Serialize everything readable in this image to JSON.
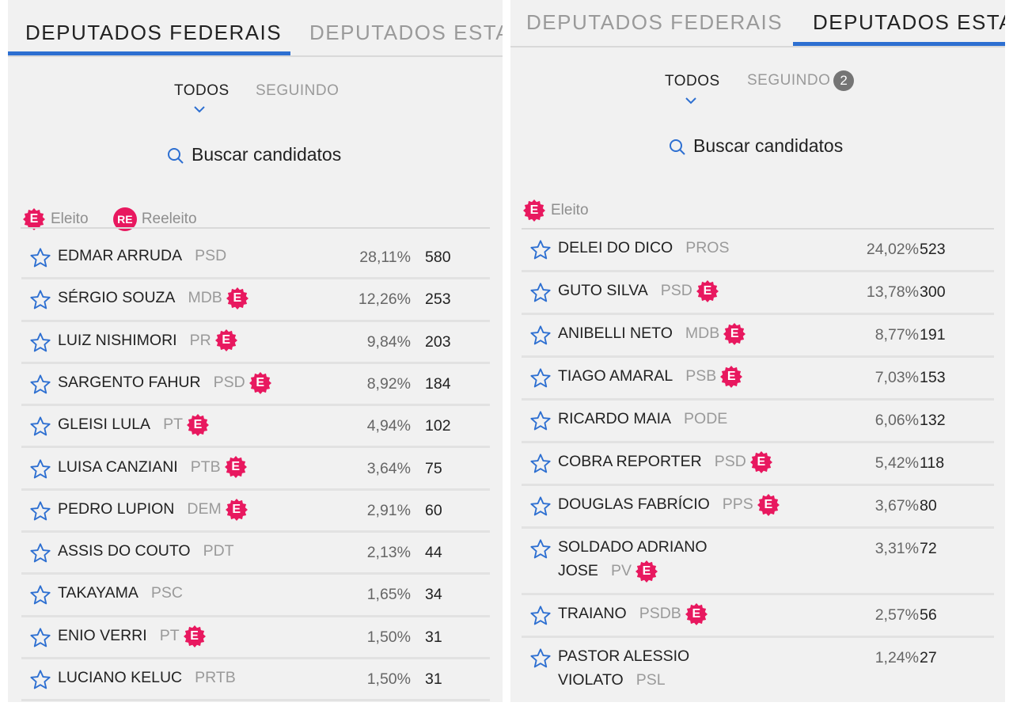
{
  "colors": {
    "accent": "#2d6fd1",
    "elected_badge": "#e8185f",
    "count_badge": "#757575"
  },
  "left": {
    "tabs": [
      "DEPUTADOS FEDERAIS",
      "DEPUTADOS ESTA"
    ],
    "active_tab": 0,
    "filters": {
      "all": "TODOS",
      "following": "SEGUINDO"
    },
    "search_label": "Buscar candidatos",
    "legend": [
      {
        "badge": "E",
        "label": "Eleito"
      },
      {
        "badge": "RE",
        "label": "Reeleito"
      }
    ],
    "rows": [
      {
        "name": "EDMAR ARRUDA",
        "party": "PSD",
        "elected": false,
        "pct": "28,11%",
        "votes": "580"
      },
      {
        "name": "SÉRGIO SOUZA",
        "party": "MDB",
        "elected": true,
        "pct": "12,26%",
        "votes": "253"
      },
      {
        "name": "LUIZ NISHIMORI",
        "party": "PR",
        "elected": true,
        "pct": "9,84%",
        "votes": "203"
      },
      {
        "name": "SARGENTO FAHUR",
        "party": "PSD",
        "elected": true,
        "pct": "8,92%",
        "votes": "184"
      },
      {
        "name": "GLEISI LULA",
        "party": "PT",
        "elected": true,
        "pct": "4,94%",
        "votes": "102"
      },
      {
        "name": "LUISA CANZIANI",
        "party": "PTB",
        "elected": true,
        "pct": "3,64%",
        "votes": "75"
      },
      {
        "name": "PEDRO LUPION",
        "party": "DEM",
        "elected": true,
        "pct": "2,91%",
        "votes": "60"
      },
      {
        "name": "ASSIS DO COUTO",
        "party": "PDT",
        "elected": false,
        "pct": "2,13%",
        "votes": "44"
      },
      {
        "name": "TAKAYAMA",
        "party": "PSC",
        "elected": false,
        "pct": "1,65%",
        "votes": "34"
      },
      {
        "name": "ENIO VERRI",
        "party": "PT",
        "elected": true,
        "pct": "1,50%",
        "votes": "31"
      },
      {
        "name": "LUCIANO KELUC",
        "party": "PRTB",
        "elected": false,
        "pct": "1,50%",
        "votes": "31"
      }
    ]
  },
  "right": {
    "tabs": [
      "DEPUTADOS FEDERAIS",
      "DEPUTADOS ESTA"
    ],
    "active_tab": 1,
    "filters": {
      "all": "TODOS",
      "following": "SEGUINDO",
      "following_count": "2"
    },
    "search_label": "Buscar candidatos",
    "legend": [
      {
        "badge": "E",
        "label": "Eleito"
      }
    ],
    "rows": [
      {
        "name_lines": [
          "DELEI DO DICO"
        ],
        "party": "PROS",
        "elected": false,
        "pct": "24,02%",
        "votes": "523"
      },
      {
        "name_lines": [
          "GUTO SILVA"
        ],
        "party": "PSD",
        "elected": true,
        "pct": "13,78%",
        "votes": "300"
      },
      {
        "name_lines": [
          "ANIBELLI NETO"
        ],
        "party": "MDB",
        "elected": true,
        "pct": "8,77%",
        "votes": "191"
      },
      {
        "name_lines": [
          "TIAGO AMARAL"
        ],
        "party": "PSB",
        "elected": true,
        "pct": "7,03%",
        "votes": "153"
      },
      {
        "name_lines": [
          "RICARDO MAIA"
        ],
        "party": "PODE",
        "elected": false,
        "pct": "6,06%",
        "votes": "132"
      },
      {
        "name_lines": [
          "COBRA REPORTER"
        ],
        "party": "PSD",
        "elected": true,
        "pct": "5,42%",
        "votes": "118"
      },
      {
        "name_lines": [
          "DOUGLAS FABRÍCIO"
        ],
        "party": "PPS",
        "elected": true,
        "pct": "3,67%",
        "votes": "80"
      },
      {
        "name_lines": [
          "SOLDADO ADRIANO",
          "JOSE"
        ],
        "party": "PV",
        "elected": true,
        "pct": "3,31%",
        "votes": "72"
      },
      {
        "name_lines": [
          "TRAIANO"
        ],
        "party": "PSDB",
        "elected": true,
        "pct": "2,57%",
        "votes": "56"
      },
      {
        "name_lines": [
          "PASTOR ALESSIO",
          "VIOLATO"
        ],
        "party": "PSL",
        "elected": false,
        "pct": "1,24%",
        "votes": "27"
      }
    ]
  }
}
